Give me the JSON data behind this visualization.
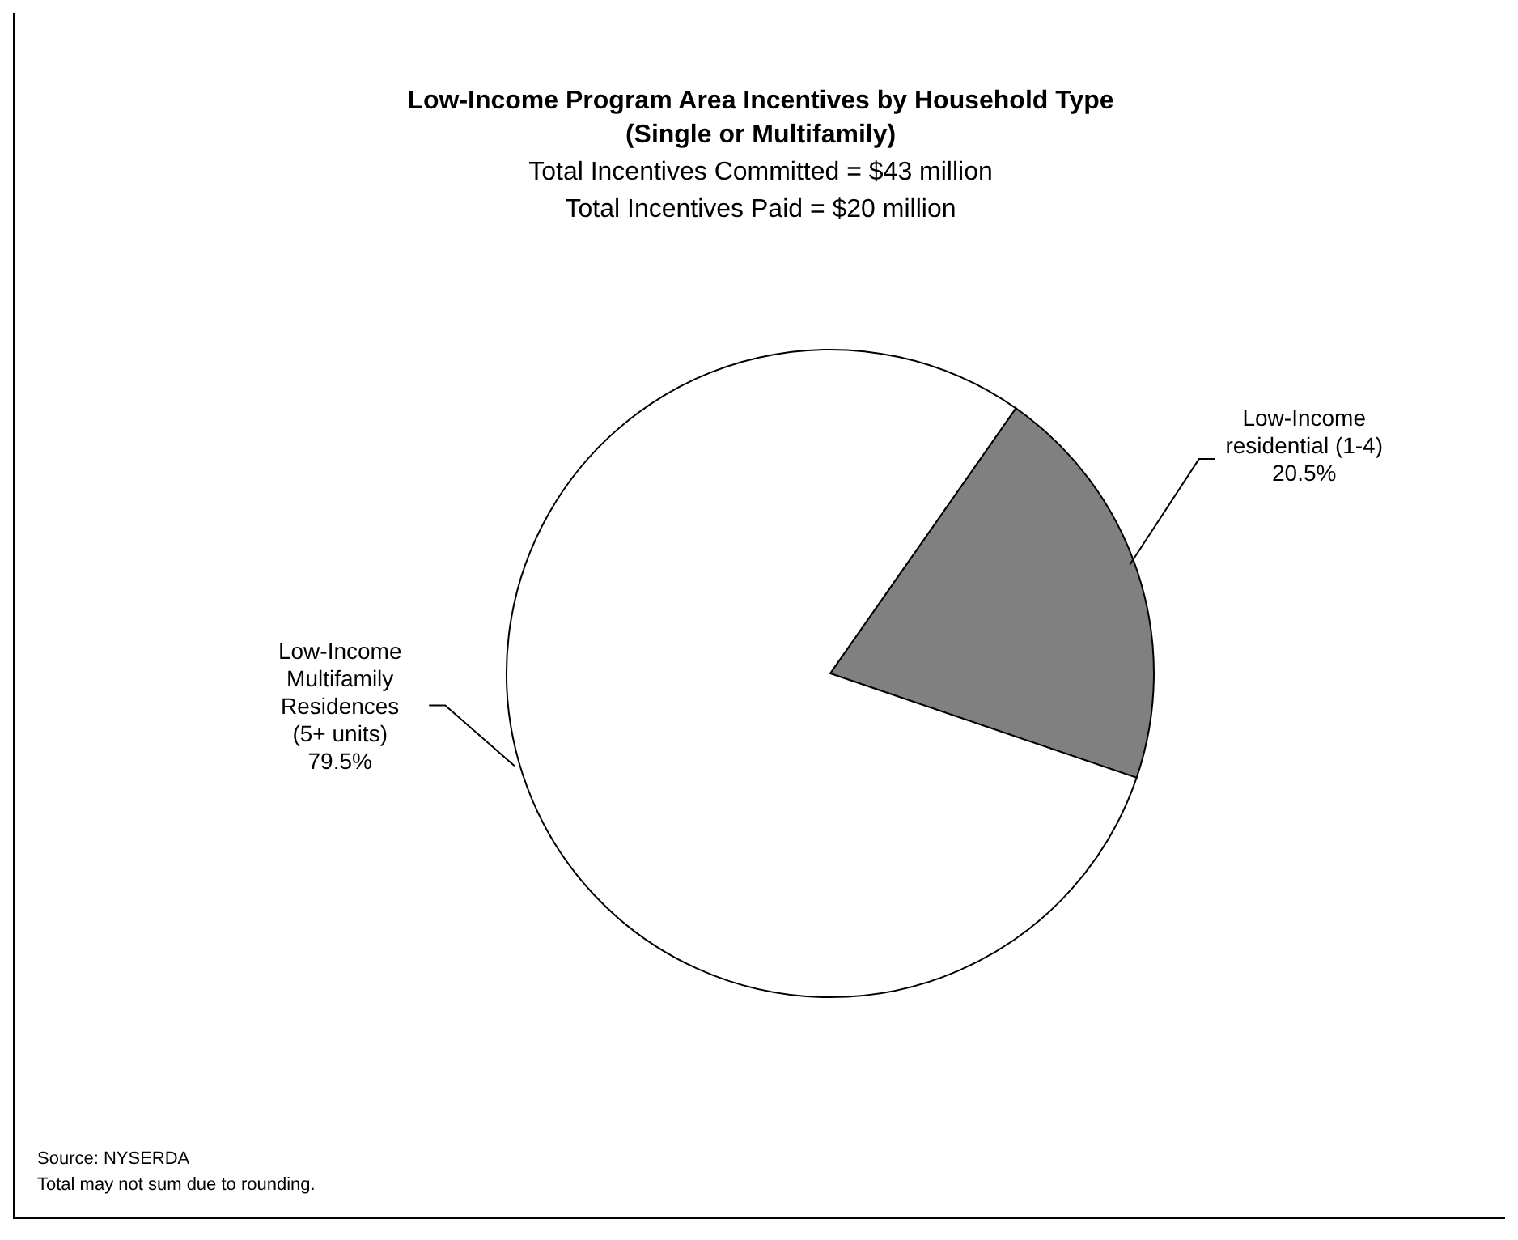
{
  "chart_data": {
    "type": "pie",
    "title": "Low-Income Program Area Incentives by Household Type\n(Single or Multifamily)",
    "subtitle": "Total Incentives Committed = $43 million\nTotal Incentives Paid = $20 million",
    "categories": [
      "Low-Income\nresidential (1-4)",
      "Low-Income\nMultifamily\nResidences\n(5+ units)"
    ],
    "values": [
      20.5,
      79.5
    ],
    "colors": [
      "#808080",
      "#ffffff"
    ],
    "value_labels": [
      "20.5%",
      "79.5%"
    ],
    "annotations": [
      "Source: NYSERDA",
      "Total may not sum due to rounding."
    ],
    "legend": false
  }
}
